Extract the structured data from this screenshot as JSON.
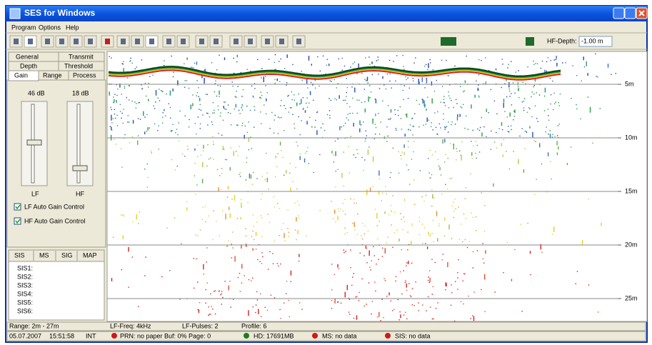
{
  "window": {
    "title": "SES for Windows"
  },
  "menu": [
    "Program",
    "Options",
    "Help"
  ],
  "toolbar": {
    "hf_depth_label": "HF-Depth:",
    "hf_depth_value": "-1.00 m"
  },
  "settings_tabs": {
    "row1": [
      "General",
      "Transmit"
    ],
    "row2": [
      "Depth",
      "Threshold"
    ],
    "row3": [
      "Gain",
      "Range",
      "Process"
    ]
  },
  "gain": {
    "lf_db": "46 dB",
    "hf_db": "18 dB",
    "lf_label": "LF",
    "hf_label": "HF",
    "lf_agc": "LF Auto Gain Control",
    "hf_agc": "HF Auto Gain Control"
  },
  "lower_tabs": [
    "SIS",
    "MS",
    "SIG",
    "MAP"
  ],
  "sis_list": [
    "SIS1:",
    "SIS2:",
    "SIS3:",
    "SIS4:",
    "SIS5:",
    "SIS6:"
  ],
  "depth_labels": [
    "5m",
    "10m",
    "15m",
    "20m",
    "25m"
  ],
  "status": {
    "row1": [
      "Range: 2m - 27m",
      "LF-Freq: 4kHz",
      "LF-Pulses: 2",
      "Profile: 6"
    ],
    "row2": {
      "date": "05.07.2007",
      "time": "15:51:58",
      "mode": "INT",
      "prn": "PRN: no paper Buf: 0% Page: 0",
      "hd": "HD: 17691MB",
      "ms": "MS: no data",
      "sis": "SIS: no data"
    }
  }
}
